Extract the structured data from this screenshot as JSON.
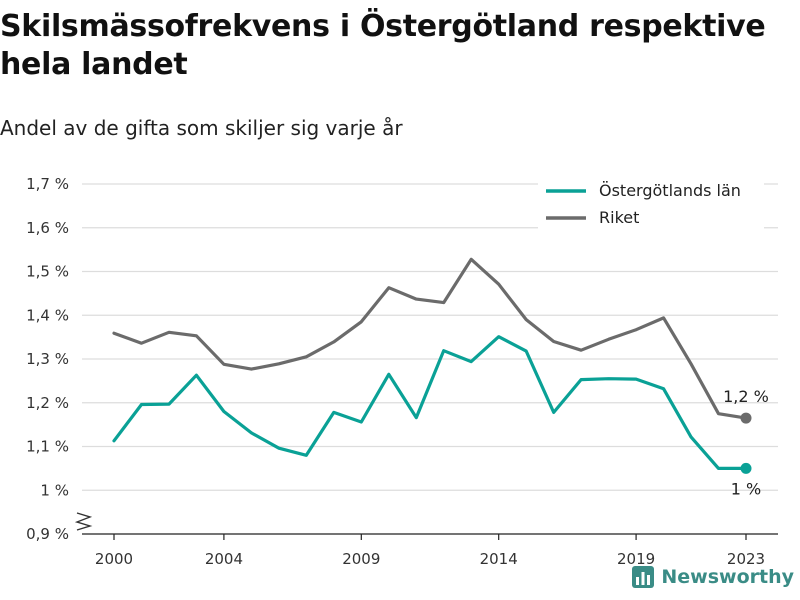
{
  "title": "Skilsmässofrekvens i Östergötland respektive hela landet",
  "subtitle": "Andel av de gifta som skiljer sig varje år",
  "brand": "Newsworthy",
  "colors": {
    "ostergotland": "#0aa196",
    "riket": "#6b6b6b",
    "grid": "#dddddd"
  },
  "chart_data": {
    "type": "line",
    "x": [
      2000,
      2001,
      2002,
      2003,
      2004,
      2005,
      2006,
      2007,
      2008,
      2009,
      2010,
      2011,
      2012,
      2013,
      2014,
      2015,
      2016,
      2017,
      2018,
      2019,
      2020,
      2021,
      2022,
      2023
    ],
    "series": [
      {
        "name": "Östergötlands län",
        "color": "#0aa196",
        "values": [
          1.113,
          1.196,
          1.197,
          1.263,
          1.18,
          1.131,
          1.096,
          1.08,
          1.178,
          1.156,
          1.265,
          1.166,
          1.319,
          1.294,
          1.351,
          1.318,
          1.178,
          1.253,
          1.255,
          1.254,
          1.232,
          1.122,
          1.05,
          1.05
        ],
        "end_label": "1 %"
      },
      {
        "name": "Riket",
        "color": "#6b6b6b",
        "values": [
          1.359,
          1.336,
          1.361,
          1.353,
          1.288,
          1.277,
          1.289,
          1.305,
          1.339,
          1.385,
          1.463,
          1.437,
          1.429,
          1.528,
          1.471,
          1.39,
          1.34,
          1.32,
          1.345,
          1.367,
          1.394,
          1.289,
          1.175,
          1.165
        ],
        "end_label": "1,2 %"
      }
    ],
    "ylim": [
      0.9,
      1.7
    ],
    "yticks": [
      0.9,
      1.0,
      1.1,
      1.2,
      1.3,
      1.4,
      1.5,
      1.6,
      1.7
    ],
    "ytick_labels": [
      "0,9 %",
      "1 %",
      "1,1 %",
      "1,2 %",
      "1,3 %",
      "1,4 %",
      "1,5 %",
      "1,6 %",
      "1,7 %"
    ],
    "xticks": [
      2000,
      2004,
      2009,
      2014,
      2019,
      2023
    ],
    "xtick_labels": [
      "2000",
      "2004",
      "2009",
      "2014",
      "2019",
      "2023"
    ],
    "grid": true,
    "axis_break": true,
    "legend": "top-right"
  }
}
